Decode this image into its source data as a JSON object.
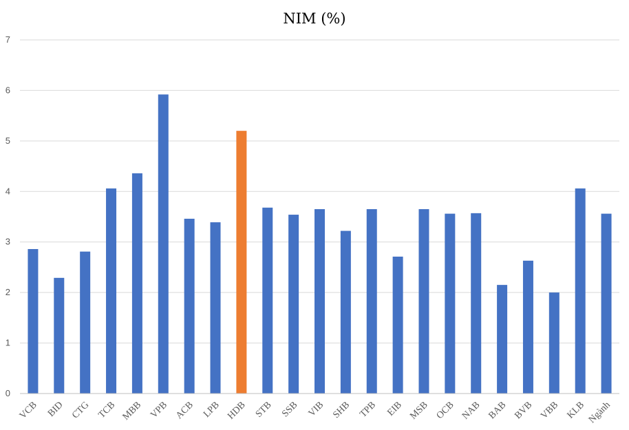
{
  "chart_data": {
    "type": "bar",
    "title": "NIM (%)",
    "xlabel": "",
    "ylabel": "",
    "ylim": [
      0,
      7
    ],
    "yticks": [
      0,
      1,
      2,
      3,
      4,
      5,
      6,
      7
    ],
    "grid": true,
    "legend": "none",
    "categories": [
      "VCB",
      "BID",
      "CTG",
      "TCB",
      "MBB",
      "VPB",
      "ACB",
      "LPB",
      "HDB",
      "STB",
      "SSB",
      "VIB",
      "SHB",
      "TPB",
      "EIB",
      "MSB",
      "OCB",
      "NAB",
      "BAB",
      "BVB",
      "VBB",
      "KLB",
      "Ngành"
    ],
    "values": [
      2.86,
      2.29,
      2.81,
      4.06,
      4.36,
      5.92,
      3.46,
      3.39,
      5.2,
      3.68,
      3.54,
      3.65,
      3.22,
      3.65,
      2.71,
      3.65,
      3.56,
      3.57,
      2.15,
      2.63,
      2.0,
      4.06,
      3.56
    ],
    "highlight": "HDB",
    "colors": {
      "bar": "#4472c4",
      "highlight": "#ed7d31"
    }
  }
}
